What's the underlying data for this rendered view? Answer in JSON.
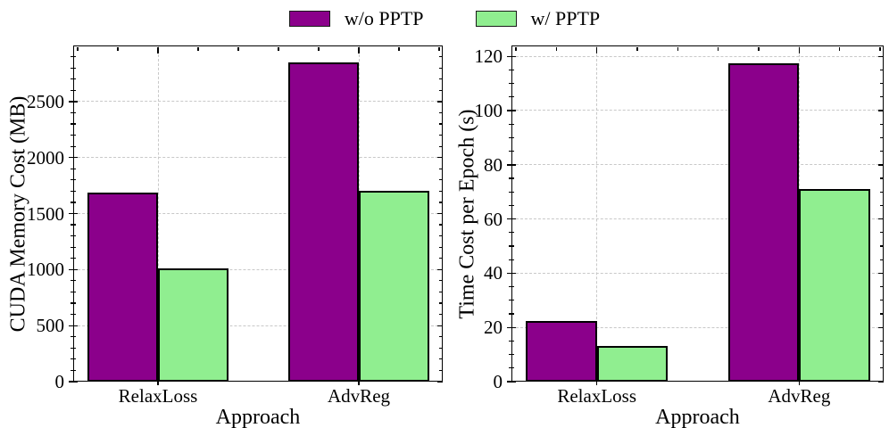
{
  "figure": {
    "background": "#ffffff"
  },
  "legend": {
    "position": "top-center",
    "items": [
      {
        "label": "w/o PPTP",
        "color": "#8B008B"
      },
      {
        "label": "w/ PPTP",
        "color": "#90EE90"
      }
    ]
  },
  "chart_data": [
    {
      "type": "bar",
      "title": "",
      "xlabel": "Approach",
      "ylabel": "CUDA Memory Cost (MB)",
      "categories": [
        "RelaxLoss",
        "AdvReg"
      ],
      "series": [
        {
          "name": "w/o PPTP",
          "color": "#8B008B",
          "values": [
            1690,
            2850
          ]
        },
        {
          "name": "w/ PPTP",
          "color": "#90EE90",
          "values": [
            1010,
            1700
          ]
        }
      ],
      "ylim": [
        0,
        3000
      ],
      "yticks": [
        0,
        500,
        1000,
        1500,
        2000,
        2500
      ],
      "y_minor_step": 100,
      "grid": true,
      "grid_style": "dashed",
      "grid_color": "#c8c8c8",
      "bar_edge_color": "#000000",
      "legend_position": "figure top center"
    },
    {
      "type": "bar",
      "title": "",
      "xlabel": "Approach",
      "ylabel": "Time Cost per Epoch (s)",
      "categories": [
        "RelaxLoss",
        "AdvReg"
      ],
      "series": [
        {
          "name": "w/o PPTP",
          "color": "#8B008B",
          "values": [
            22.5,
            117.5
          ]
        },
        {
          "name": "w/ PPTP",
          "color": "#90EE90",
          "values": [
            13,
            71
          ]
        }
      ],
      "ylim": [
        0,
        124
      ],
      "yticks": [
        0,
        20,
        40,
        60,
        80,
        100,
        120
      ],
      "y_minor_step": 5,
      "grid": true,
      "grid_style": "dashed",
      "grid_color": "#c8c8c8",
      "bar_edge_color": "#000000",
      "legend_position": "figure top center"
    }
  ]
}
